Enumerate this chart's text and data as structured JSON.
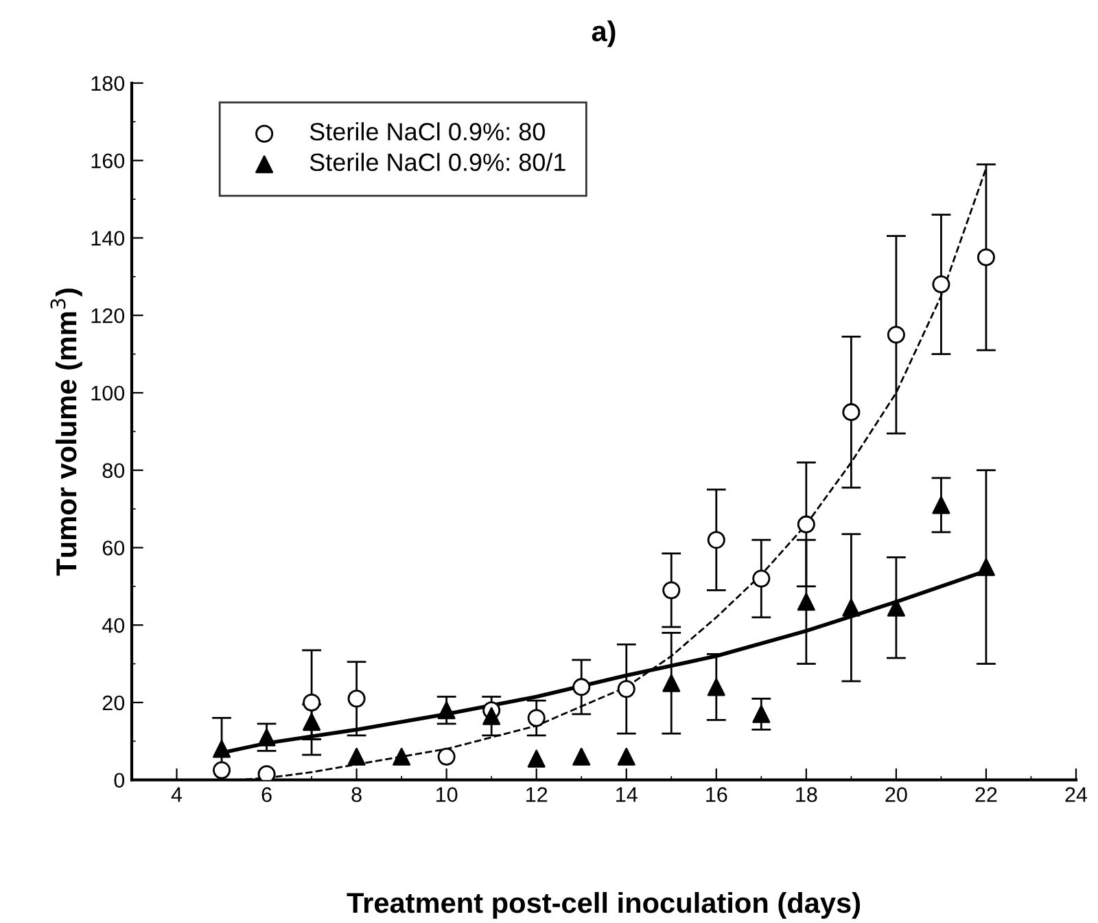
{
  "chart_data": {
    "type": "scatter",
    "title": "a)",
    "xlabel": "Treatment post-cell inoculation (days)",
    "ylabel": "Tumor volume (mm$^{3}$)",
    "xlim": [
      3,
      24
    ],
    "xticks": [
      4,
      6,
      8,
      10,
      12,
      14,
      16,
      18,
      20,
      22,
      24
    ],
    "ylim": [
      0,
      180
    ],
    "yticks": [
      0,
      20,
      40,
      60,
      80,
      100,
      120,
      140,
      160,
      180
    ],
    "grid": false,
    "legend": "top left",
    "series": [
      {
        "name": "Sterile NaCl 0.9%: 80",
        "marker": "circle",
        "color": "#ffffff",
        "x": [
          5,
          6,
          7,
          8,
          10,
          11,
          12,
          13,
          14,
          15,
          16,
          17,
          18,
          19,
          20,
          21,
          22
        ],
        "values": [
          2.5,
          1.5,
          20,
          21,
          6,
          18,
          16,
          24,
          23.5,
          49,
          62,
          52,
          66,
          95,
          115,
          128,
          135
        ],
        "errors": [
          null,
          null,
          13.5,
          9.5,
          null,
          null,
          4.5,
          7,
          11.5,
          9.5,
          13,
          10,
          16,
          19.5,
          25.5,
          18,
          24
        ]
      },
      {
        "name": "Sterile NaCl 0.9%: 80/1",
        "marker": "triangle",
        "color": "#000000",
        "x": [
          5,
          6,
          7,
          8,
          9,
          10,
          11,
          12,
          13,
          14,
          15,
          16,
          17,
          18,
          19,
          20,
          21,
          22
        ],
        "values": [
          8,
          11,
          15,
          6,
          6,
          18,
          16.5,
          5.5,
          6,
          6,
          25,
          24,
          17,
          46,
          44.5,
          44.5,
          71,
          55
        ],
        "errors": [
          8,
          3.5,
          4.5,
          null,
          null,
          3.5,
          5,
          null,
          null,
          null,
          13,
          8.5,
          4,
          16,
          19,
          13,
          7,
          25
        ]
      },
      {
        "type": "line",
        "line_style": "dashed",
        "marker": "none",
        "color": "#000000",
        "x": [
          5.3,
          6,
          7,
          8,
          9,
          10,
          11,
          12,
          13,
          14,
          15,
          16,
          17,
          18,
          19,
          20,
          21,
          22
        ],
        "values": [
          0,
          0.5,
          2,
          4,
          6,
          8,
          11,
          14,
          19,
          24,
          32,
          42,
          53,
          66,
          82,
          100,
          125,
          158
        ]
      },
      {
        "type": "line",
        "line_style": "solid",
        "marker": "none",
        "color": "#000000",
        "x": [
          5,
          6,
          8,
          10,
          12,
          14,
          16,
          18,
          20,
          22
        ],
        "values": [
          7,
          9.5,
          13,
          17,
          21.5,
          27,
          32,
          38.5,
          46,
          54
        ]
      }
    ]
  }
}
